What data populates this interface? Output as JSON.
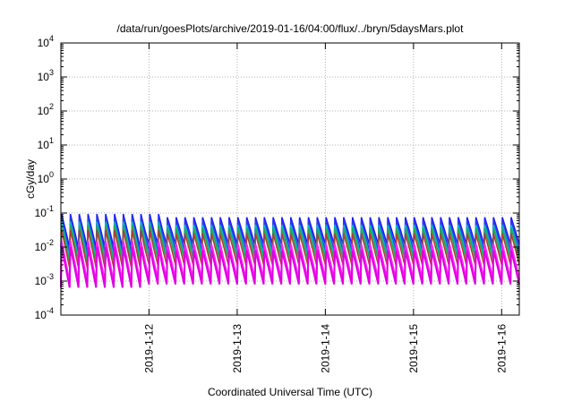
{
  "chart_data": {
    "type": "line",
    "title": "/data/run/goesPlots/archive/2019-01-16/04:00/flux/../bryn/5daysMars.plot",
    "xlabel": "Coordinated Universal Time (UTC)",
    "ylabel": "cGy/day",
    "yscale": "log",
    "ylim": [
      0.0001,
      10000
    ],
    "xlim": [
      0,
      5.2
    ],
    "grid": true,
    "y_ticks": [
      {
        "base": "10",
        "exp": "-4"
      },
      {
        "base": "10",
        "exp": "-3"
      },
      {
        "base": "10",
        "exp": "-2"
      },
      {
        "base": "10",
        "exp": "-1"
      },
      {
        "base": "10",
        "exp": "0"
      },
      {
        "base": "10",
        "exp": "1"
      },
      {
        "base": "10",
        "exp": "2"
      },
      {
        "base": "10",
        "exp": "3"
      },
      {
        "base": "10",
        "exp": "4"
      }
    ],
    "x_ticks": [
      "2019-1-12",
      "2019-1-13",
      "2019-1-14",
      "2019-1-15",
      "2019-1-16"
    ],
    "x_tick_days": [
      1,
      2,
      3,
      4,
      5
    ],
    "sawtooth_cycles": 52,
    "series": [
      {
        "color": "#1a1aff",
        "peak": 0.075,
        "trough": 0.012
      },
      {
        "color": "#2e3de0",
        "peak": 0.06,
        "trough": 0.008
      },
      {
        "color": "#00b8c8",
        "peak": 0.045,
        "trough": 0.006
      },
      {
        "color": "#2aa84a",
        "peak": 0.035,
        "trough": 0.0045
      },
      {
        "color": "#b03a3a",
        "peak": 0.025,
        "trough": 0.003
      },
      {
        "color": "#ff20ff",
        "peak": 0.012,
        "trough": 0.0011
      },
      {
        "color": "#e000e0",
        "peak": 0.008,
        "trough": 0.0008
      }
    ]
  }
}
